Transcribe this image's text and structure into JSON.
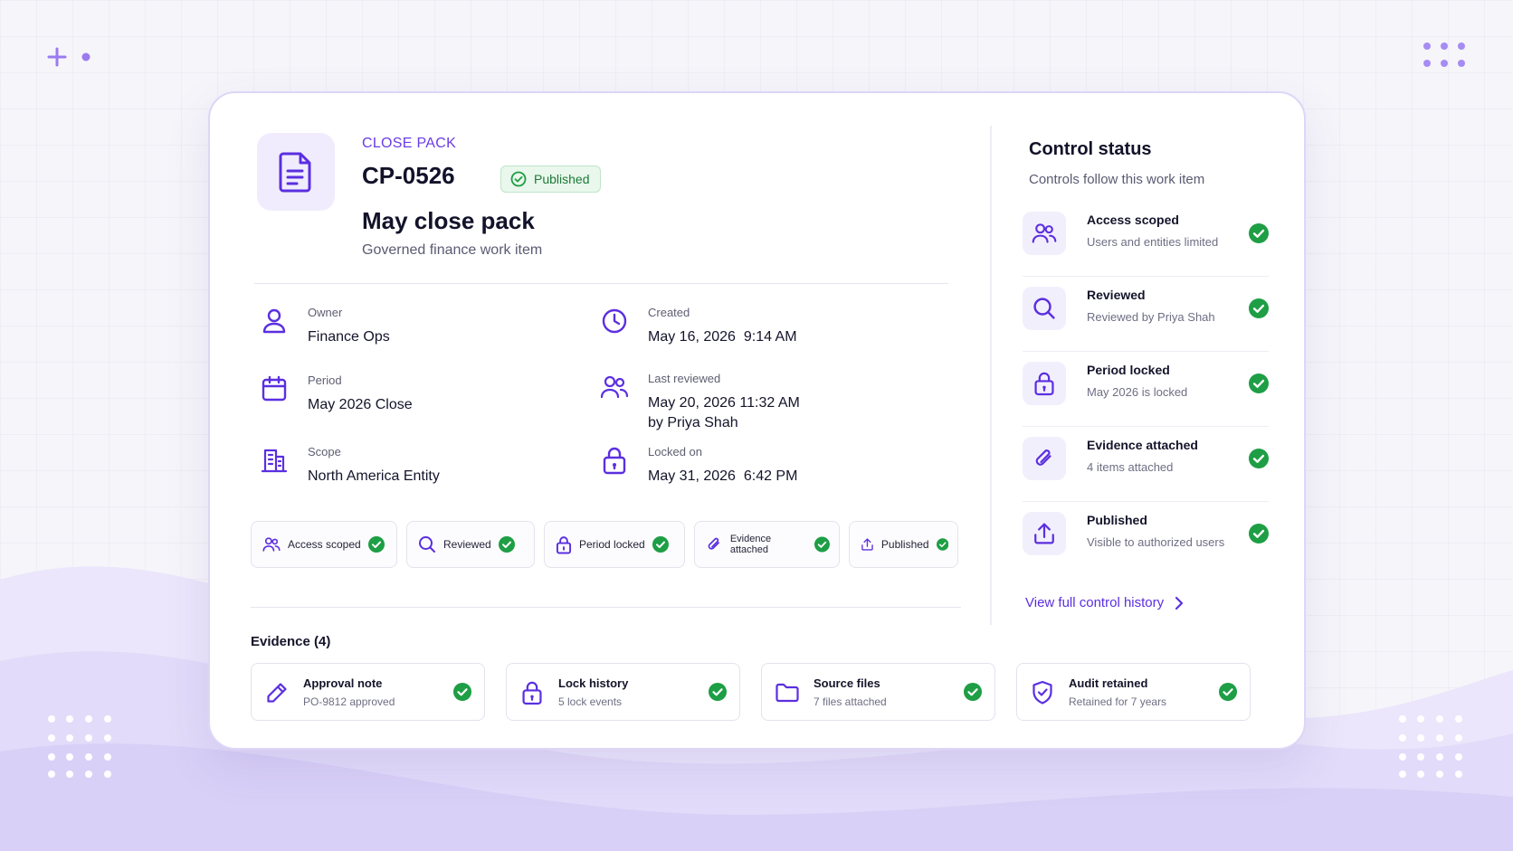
{
  "header": {
    "eyebrow": "CLOSE PACK",
    "pack_id": "CP-0526",
    "status": "Published",
    "title": "May close pack",
    "subtitle": "Governed finance work item"
  },
  "meta": {
    "owner": {
      "label": "Owner",
      "value": "Finance Ops"
    },
    "created": {
      "label": "Created",
      "value": "May 16, 2026  9:14 AM"
    },
    "period": {
      "label": "Period",
      "value": "May 2026 Close"
    },
    "last_reviewed": {
      "label": "Last reviewed",
      "value": "May 20, 2026 11:32 AM",
      "value2": "by Priya Shah"
    },
    "scope": {
      "label": "Scope",
      "value": "North America Entity"
    },
    "locked_on": {
      "label": "Locked on",
      "value": "May 31, 2026  6:42 PM"
    }
  },
  "chips": [
    {
      "label": "Access scoped",
      "icon": "users-icon"
    },
    {
      "label": "Reviewed",
      "icon": "search-icon"
    },
    {
      "label": "Period locked",
      "icon": "lock-icon"
    },
    {
      "label": "Evidence attached",
      "icon": "paperclip-icon"
    },
    {
      "label": "Published",
      "icon": "upload-icon"
    }
  ],
  "evidence": {
    "title": "Evidence (4)",
    "items": [
      {
        "title": "Approval note",
        "sub": "PO-9812 approved",
        "icon": "pencil-icon"
      },
      {
        "title": "Lock history",
        "sub": "5 lock events",
        "icon": "lock-icon"
      },
      {
        "title": "Source files",
        "sub": "7 files attached",
        "icon": "folder-icon"
      },
      {
        "title": "Audit retained",
        "sub": "Retained for 7 years",
        "icon": "shield-check-icon"
      }
    ]
  },
  "control_status": {
    "title": "Control status",
    "subtitle": "Controls follow this work item",
    "items": [
      {
        "title": "Access scoped",
        "sub": "Users and entities limited",
        "icon": "users-icon"
      },
      {
        "title": "Reviewed",
        "sub": "Reviewed by Priya Shah",
        "icon": "search-icon"
      },
      {
        "title": "Period locked",
        "sub": "May 2026 is locked",
        "icon": "lock-icon"
      },
      {
        "title": "Evidence attached",
        "sub": "4 items attached",
        "icon": "paperclip-icon"
      },
      {
        "title": "Published",
        "sub": "Visible to authorized users",
        "icon": "upload-icon"
      }
    ],
    "history_link": "View full control history"
  },
  "colors": {
    "accent": "#6a3ce6",
    "success": "#1e9e45",
    "background": "#f6f5fa"
  }
}
